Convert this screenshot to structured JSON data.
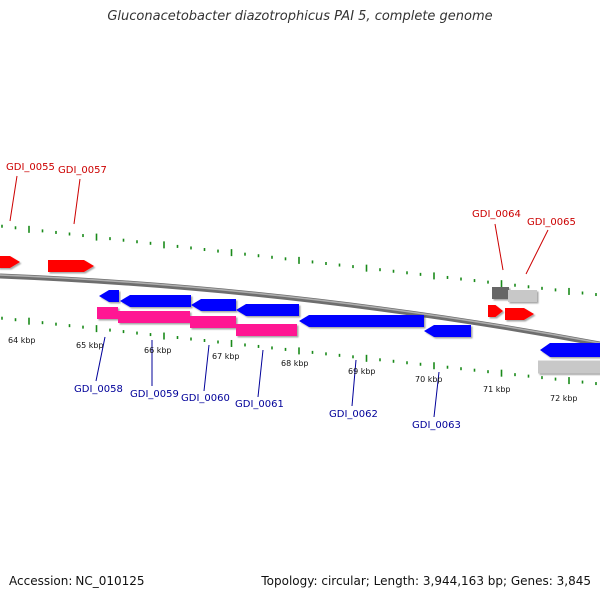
{
  "title": "Gluconacetobacter diazotrophicus PAI 5, complete genome",
  "footer": {
    "accession_label": "Accession:",
    "accession": "NC_010125",
    "topology_text": "Topology: circular; Length: 3,944,163 bp; Genes: 3,845"
  },
  "colors": {
    "forward_gene": "#ff0000",
    "reverse_gene": "#0000ff",
    "rna_gene": "#ff1493",
    "tick": "#1a8a1a",
    "forward_label": "#cc0000",
    "reverse_label": "#000099",
    "backbone": "#888888",
    "pseudo_gene": "#c8c8c8"
  },
  "scale_labels": [
    "64 kbp",
    "65 kbp",
    "66 kbp",
    "67 kbp",
    "68 kbp",
    "69 kbp",
    "70 kbp",
    "71 kbp",
    "72 kbp"
  ],
  "forward_gene_labels": [
    "GDI_0055",
    "GDI_0057",
    "GDI_0064",
    "GDI_0065"
  ],
  "reverse_gene_labels": [
    "GDI_0058",
    "GDI_0059",
    "GDI_0060",
    "GDI_0061",
    "GDI_0062",
    "GDI_0063"
  ]
}
